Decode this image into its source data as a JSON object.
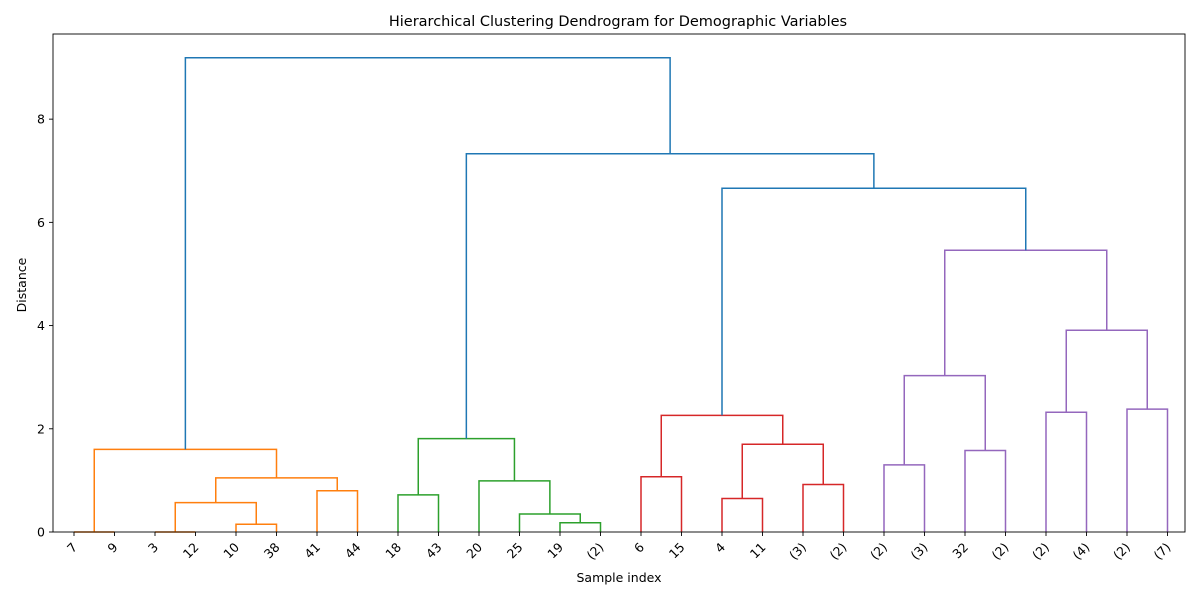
{
  "chart_data": {
    "type": "dendrogram",
    "title": "Hierarchical Clustering Dendrogram for Demographic Variables",
    "xlabel": "Sample index",
    "ylabel": "Distance",
    "ylim": [
      0,
      9.65
    ],
    "yticks": [
      0,
      2,
      4,
      6,
      8
    ],
    "grid": false,
    "leaves": [
      "7",
      "9",
      "3",
      "12",
      "10",
      "38",
      "41",
      "44",
      "18",
      "43",
      "20",
      "25",
      "19",
      "(2)",
      "6",
      "15",
      "4",
      "11",
      "(3)",
      "(2)",
      "(2)",
      "(3)",
      "32",
      "(2)",
      "(2)",
      "(4)",
      "(2)",
      "(7)"
    ],
    "merges": [
      {
        "left": 0,
        "right": 1,
        "height": 0.0,
        "color": "#ff7f0e"
      },
      {
        "left": 2,
        "right": 3,
        "height": 0.0,
        "color": "#ff7f0e"
      },
      {
        "left": 4,
        "right": 5,
        "height": 0.15,
        "color": "#ff7f0e"
      },
      {
        "left": 2.5,
        "right": 4.5,
        "height": 0.57,
        "color": "#ff7f0e"
      },
      {
        "left": 6,
        "right": 7,
        "height": 0.8,
        "color": "#ff7f0e"
      },
      {
        "left": 3.5,
        "right": 6.5,
        "height": 1.05,
        "color": "#ff7f0e"
      },
      {
        "left": 0.5,
        "right": 5.0,
        "height": 1.6,
        "color": "#ff7f0e"
      },
      {
        "left": 8,
        "right": 9,
        "height": 0.72,
        "color": "#2ca02c"
      },
      {
        "left": 12,
        "right": 13,
        "height": 0.18,
        "color": "#2ca02c"
      },
      {
        "left": 11,
        "right": 12.5,
        "height": 0.35,
        "color": "#2ca02c"
      },
      {
        "left": 10,
        "right": 11.75,
        "height": 0.99,
        "color": "#2ca02c"
      },
      {
        "left": 8.5,
        "right": 10.875,
        "height": 1.81,
        "color": "#2ca02c"
      },
      {
        "left": 14,
        "right": 15,
        "height": 1.07,
        "color": "#d62728"
      },
      {
        "left": 16,
        "right": 17,
        "height": 0.65,
        "color": "#d62728"
      },
      {
        "left": 18,
        "right": 19,
        "height": 0.92,
        "color": "#d62728"
      },
      {
        "left": 16.5,
        "right": 18.5,
        "height": 1.7,
        "color": "#d62728"
      },
      {
        "left": 14.5,
        "right": 17.5,
        "height": 2.26,
        "color": "#d62728"
      },
      {
        "left": 20,
        "right": 21,
        "height": 1.3,
        "color": "#9467bd"
      },
      {
        "left": 22,
        "right": 23,
        "height": 1.58,
        "color": "#9467bd"
      },
      {
        "left": 20.5,
        "right": 22.5,
        "height": 3.03,
        "color": "#9467bd"
      },
      {
        "left": 24,
        "right": 25,
        "height": 2.32,
        "color": "#9467bd"
      },
      {
        "left": 26,
        "right": 27,
        "height": 2.38,
        "color": "#9467bd"
      },
      {
        "left": 24.5,
        "right": 26.5,
        "height": 3.91,
        "color": "#9467bd"
      },
      {
        "left": 21.5,
        "right": 25.5,
        "height": 5.46,
        "color": "#9467bd"
      },
      {
        "left": 16.0,
        "right": 23.5,
        "height": 6.66,
        "color": "#1f77b4"
      },
      {
        "left": 9.6875,
        "right": 19.75,
        "height": 7.33,
        "color": "#1f77b4"
      },
      {
        "left": 2.75,
        "right": 14.71875,
        "height": 9.19,
        "color": "#1f77b4"
      }
    ]
  }
}
